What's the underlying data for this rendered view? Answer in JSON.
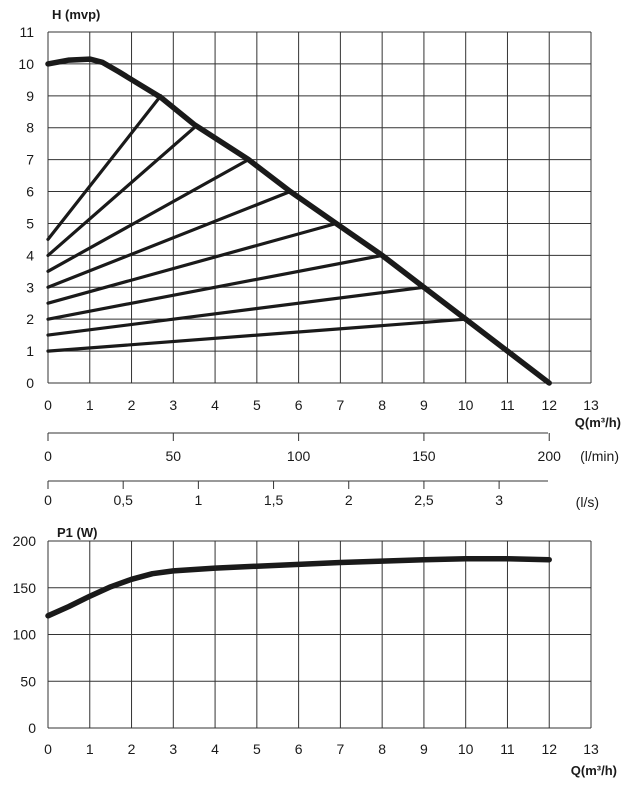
{
  "chart_data": [
    {
      "type": "line",
      "ylabel": "H (mvp)",
      "xlabel": "Q(m³/h)",
      "xlim": [
        0,
        13
      ],
      "ylim": [
        0,
        11
      ],
      "x_ticks": [
        "0",
        "1",
        "2",
        "3",
        "4",
        "5",
        "6",
        "7",
        "8",
        "9",
        "10",
        "11",
        "12",
        "13"
      ],
      "y_ticks": [
        "0",
        "1",
        "2",
        "3",
        "4",
        "5",
        "6",
        "7",
        "8",
        "9",
        "10",
        "11"
      ],
      "grid": true,
      "series": [
        {
          "role": "max-curve",
          "x": [
            0,
            0.5,
            1,
            1.3,
            1.7,
            2.2,
            2.7,
            3.5,
            4.8,
            5.8,
            6.9,
            8,
            9,
            10,
            12
          ],
          "y": [
            10,
            10.12,
            10.15,
            10.05,
            9.75,
            9.35,
            8.95,
            8.1,
            7.0,
            6.0,
            5.0,
            4.0,
            3.0,
            2.0,
            0
          ]
        },
        {
          "x": [
            0,
            2.7
          ],
          "y": [
            4.5,
            9
          ]
        },
        {
          "x": [
            0,
            3.5
          ],
          "y": [
            4,
            8
          ]
        },
        {
          "x": [
            0,
            4.8
          ],
          "y": [
            3.5,
            7
          ]
        },
        {
          "x": [
            0,
            5.8
          ],
          "y": [
            3,
            6
          ]
        },
        {
          "x": [
            0,
            6.9
          ],
          "y": [
            2.5,
            5
          ]
        },
        {
          "x": [
            0,
            8
          ],
          "y": [
            2,
            4
          ]
        },
        {
          "x": [
            0,
            9
          ],
          "y": [
            1.5,
            3
          ]
        },
        {
          "x": [
            0,
            10
          ],
          "y": [
            1,
            2
          ]
        }
      ]
    },
    {
      "type": "axis",
      "unit_label": "(l/min)",
      "ticks": [
        {
          "label": "0",
          "value": 0
        },
        {
          "label": "50",
          "value": 50
        },
        {
          "label": "100",
          "value": 100
        },
        {
          "label": "150",
          "value": 150
        },
        {
          "label": "200",
          "value": 200
        }
      ]
    },
    {
      "type": "axis",
      "unit_label": "(l/s)",
      "ticks": [
        {
          "label": "0",
          "value": 0
        },
        {
          "label": "0,5",
          "value": 0.5
        },
        {
          "label": "1",
          "value": 1
        },
        {
          "label": "1,5",
          "value": 1.5
        },
        {
          "label": "2",
          "value": 2
        },
        {
          "label": "2,5",
          "value": 2.5
        },
        {
          "label": "3",
          "value": 3
        }
      ]
    },
    {
      "type": "line",
      "ylabel": "P1 (W)",
      "xlabel": "Q(m³/h)",
      "xlim": [
        0,
        13
      ],
      "ylim": [
        0,
        200
      ],
      "x_ticks": [
        "0",
        "1",
        "2",
        "3",
        "4",
        "5",
        "6",
        "7",
        "8",
        "9",
        "10",
        "11",
        "12",
        "13"
      ],
      "y_ticks": [
        "0",
        "50",
        "100",
        "150",
        "200"
      ],
      "grid": true,
      "series": [
        {
          "x": [
            0,
            0.5,
            1,
            1.5,
            2,
            2.5,
            3,
            4,
            5,
            6,
            7,
            8,
            9,
            10,
            11,
            12
          ],
          "y": [
            120,
            130,
            141,
            151,
            159,
            165,
            168,
            171,
            173,
            175,
            177,
            178.5,
            180,
            181,
            181,
            180
          ]
        }
      ]
    }
  ]
}
